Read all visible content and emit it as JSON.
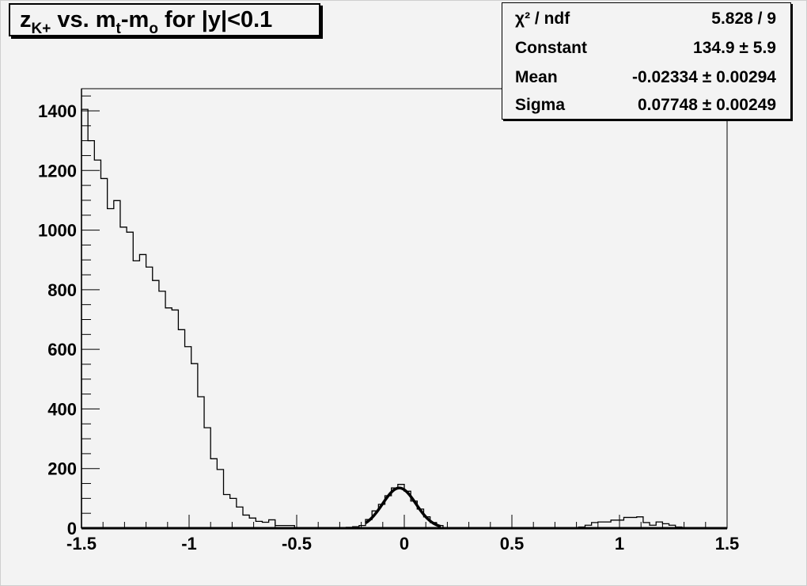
{
  "title": {
    "main": "z",
    "sub1": "K+",
    "mid1": " vs. m",
    "sub2": "t",
    "mid2": "-m",
    "sub3": "o",
    "tail": " for |y|<0.1"
  },
  "stats": [
    {
      "key": "χ² / ndf",
      "value": "5.828 / 9"
    },
    {
      "key": "Constant",
      "value": "134.9 ± 5.9"
    },
    {
      "key": "Mean",
      "value": "-0.02334 ± 0.00294"
    },
    {
      "key": "Sigma",
      "value": "0.07748 ± 0.00249"
    }
  ],
  "chart_data": {
    "type": "histogram",
    "xlim": [
      -1.5,
      1.5
    ],
    "ylim": [
      0,
      1470
    ],
    "bins": 100,
    "xticks": [
      "-1.5",
      "-1",
      "-0.5",
      "0",
      "0.5",
      "1",
      "1.5"
    ],
    "yticks": [
      "0",
      "200",
      "400",
      "600",
      "800",
      "1000",
      "1200",
      "1400"
    ],
    "values": [
      1405,
      1300,
      1235,
      1173,
      1072,
      1099,
      1010,
      993,
      897,
      918,
      876,
      831,
      795,
      739,
      732,
      666,
      609,
      552,
      441,
      337,
      233,
      197,
      113,
      100,
      71,
      44,
      34,
      23,
      20,
      28,
      9,
      9,
      9,
      2,
      2,
      0,
      0,
      0,
      0,
      1,
      2,
      3,
      5,
      9,
      29,
      58,
      80,
      109,
      135,
      147,
      124,
      91,
      64,
      38,
      19,
      9,
      2,
      1,
      0,
      0,
      0,
      0,
      0,
      0,
      0,
      0,
      1,
      0,
      0,
      0,
      0,
      0,
      0,
      0,
      0,
      0,
      1,
      4,
      10,
      19,
      21,
      21,
      27,
      27,
      36,
      36,
      38,
      19,
      10,
      21,
      15,
      10,
      4,
      2,
      2,
      1,
      0,
      0,
      0,
      0
    ],
    "fit": {
      "function": "gaus",
      "constant": 134.9,
      "mean": -0.02334,
      "sigma": 0.07748,
      "range": [
        -0.18,
        0.17
      ]
    },
    "grid": false,
    "colors": {
      "line": "#000000",
      "background": "#f3f3f3"
    }
  }
}
